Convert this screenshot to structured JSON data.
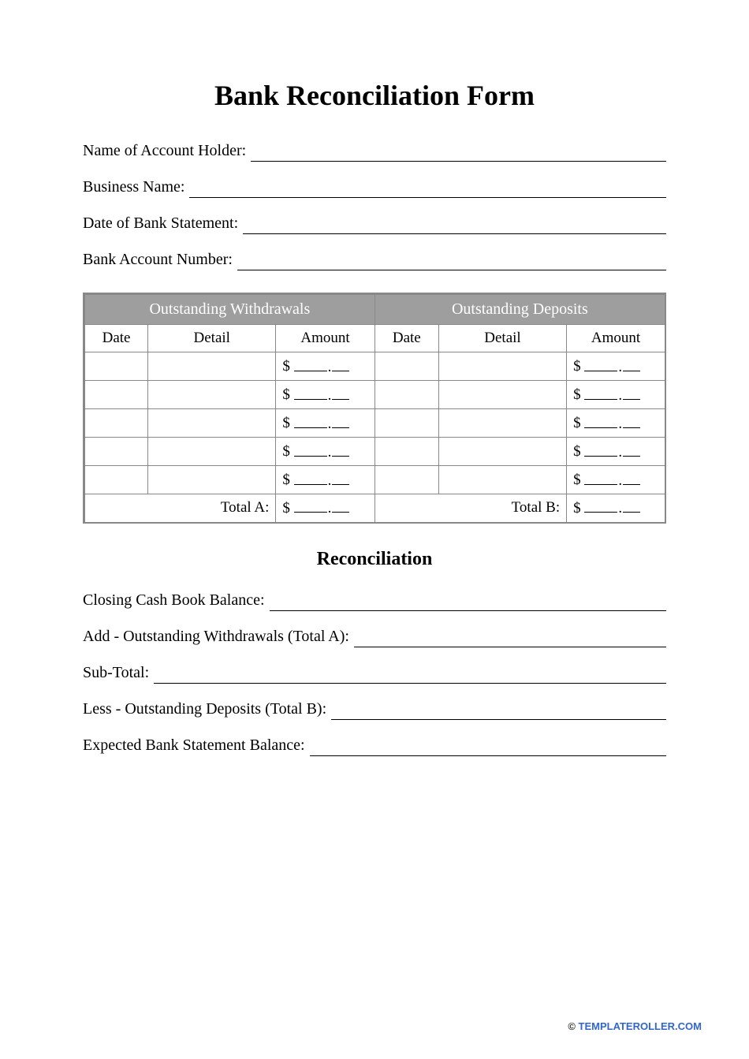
{
  "title": "Bank Reconciliation Form",
  "header_fields": {
    "account_holder": "Name of Account Holder:",
    "business_name": "Business Name:",
    "statement_date": "Date of Bank Statement:",
    "account_number": "Bank Account Number:"
  },
  "table": {
    "group_headers": {
      "withdrawals": "Outstanding Withdrawals",
      "deposits": "Outstanding Deposits"
    },
    "columns": {
      "date": "Date",
      "detail": "Detail",
      "amount": "Amount"
    },
    "amount_placeholder": {
      "symbol": "$",
      "separator": "."
    },
    "row_count": 5,
    "totals": {
      "a_label": "Total A:",
      "b_label": "Total B:"
    },
    "colors": {
      "header_bg": "#9e9e9e",
      "header_text": "#ffffff",
      "border": "#888888"
    }
  },
  "reconciliation": {
    "title": "Reconciliation",
    "lines": {
      "closing": "Closing Cash Book Balance:",
      "add": "Add - Outstanding Withdrawals (Total A):",
      "subtotal": "Sub-Total:",
      "less": "Less - Outstanding Deposits (Total B):",
      "expected": "Expected Bank Statement Balance:"
    }
  },
  "footer": {
    "copyright": "© ",
    "link_text": "TEMPLATEROLLER.COM"
  }
}
